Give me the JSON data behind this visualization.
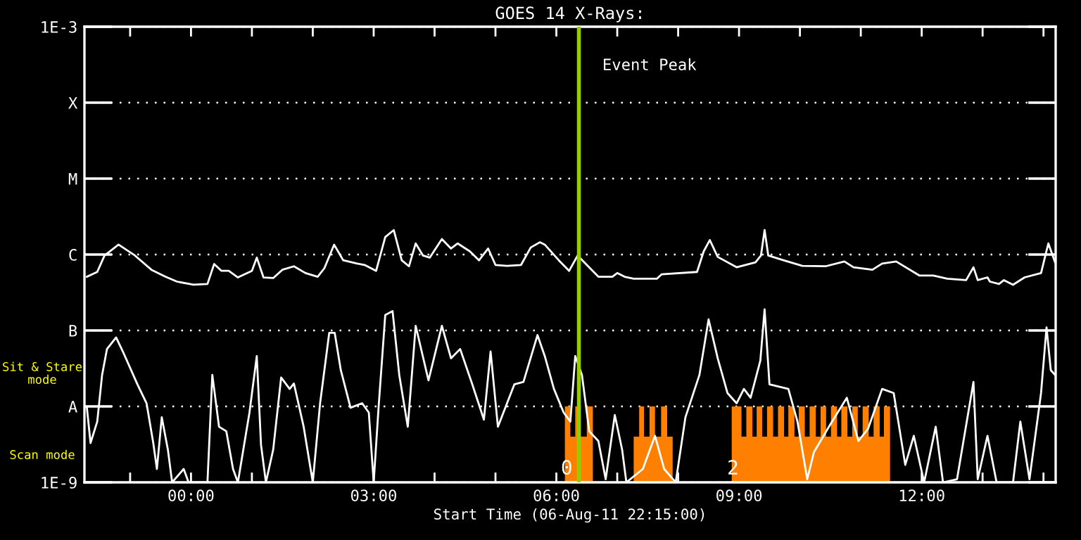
{
  "chart_data": {
    "type": "line",
    "title": "GOES 14 X-Rays:",
    "xlabel": "Start Time (06-Aug-11 22:15:00)",
    "log": "y",
    "grid": "y",
    "line_style": "solid",
    "marker": "none",
    "xlim": [
      -1.75,
      14.2
    ],
    "ylim": [
      1e-09,
      0.001
    ],
    "xticks": [
      {
        "value": -1,
        "label": null
      },
      {
        "value": 0,
        "label": "00:00"
      },
      {
        "value": 1,
        "label": null
      },
      {
        "value": 2,
        "label": null
      },
      {
        "value": 3,
        "label": "03:00"
      },
      {
        "value": 4,
        "label": null
      },
      {
        "value": 5,
        "label": null
      },
      {
        "value": 6,
        "label": "06:00"
      },
      {
        "value": 7,
        "label": null
      },
      {
        "value": 8,
        "label": null
      },
      {
        "value": 9,
        "label": "09:00"
      },
      {
        "value": 10,
        "label": null
      },
      {
        "value": 11,
        "label": null
      },
      {
        "value": 12,
        "label": "12:00"
      },
      {
        "value": 13,
        "label": null
      },
      {
        "value": 14,
        "label": null
      }
    ],
    "yticks": [
      {
        "value": 0.001,
        "label": "1E-3"
      },
      {
        "value": 0.0001,
        "label": "X"
      },
      {
        "value": 1e-05,
        "label": "M"
      },
      {
        "value": 1e-06,
        "label": "C"
      },
      {
        "value": 1e-07,
        "label": "B"
      },
      {
        "value": 1e-08,
        "label": "A"
      },
      {
        "value": 1e-09,
        "label": "1E-9"
      }
    ],
    "ref_lines": [
      {
        "axis": "x",
        "value": 6.37,
        "label": "Event Peak",
        "color": "#99cc00"
      }
    ],
    "annotations": [
      "Sit & Stare mode",
      "Scan mode",
      {
        "text": "0",
        "x": 6.17,
        "y": 1.5e-09
      },
      {
        "text": "2",
        "x": 8.9,
        "y": 1.5e-09
      }
    ],
    "series": [
      {
        "color": "#ffffff",
        "x": [
          -1.71,
          -1.54,
          -1.42,
          -1.19,
          -0.92,
          -0.65,
          -0.42,
          -0.23,
          0.04,
          0.27,
          0.38,
          0.5,
          0.62,
          0.77,
          1.0,
          1.08,
          1.19,
          1.35,
          1.5,
          1.69,
          1.88,
          2.08,
          2.19,
          2.35,
          2.5,
          2.73,
          2.85,
          3.04,
          3.19,
          3.33,
          3.46,
          3.58,
          3.69,
          3.81,
          3.92,
          4.12,
          4.27,
          4.38,
          4.58,
          4.73,
          4.88,
          5.0,
          5.19,
          5.42,
          5.58,
          5.73,
          5.81,
          6.04,
          6.21,
          6.35,
          6.5,
          6.69,
          6.92,
          7.0,
          7.12,
          7.27,
          7.65,
          7.73,
          8.31,
          8.42,
          8.52,
          8.65,
          8.96,
          9.27,
          9.36,
          9.42,
          9.48,
          9.73,
          10.04,
          10.42,
          10.73,
          10.88,
          11.19,
          11.35,
          11.58,
          11.96,
          12.19,
          12.42,
          12.73,
          12.85,
          12.92,
          13.08,
          13.12,
          13.27,
          13.35,
          13.5,
          13.69,
          13.96,
          14.04,
          14.08,
          14.19
        ],
        "values": [
          5.1e-07,
          5.9e-07,
          9.7e-07,
          1.35e-06,
          9.7e-07,
          6.3e-07,
          5.1e-07,
          4.4e-07,
          4e-07,
          4.1e-07,
          7.5e-07,
          6.1e-07,
          6.1e-07,
          5e-07,
          6.1e-07,
          9.1e-07,
          5e-07,
          4.9e-07,
          6.3e-07,
          7e-07,
          5.7e-07,
          5.1e-07,
          6.6e-07,
          1.35e-06,
          8.4e-07,
          7.6e-07,
          7.3e-07,
          6.1e-07,
          1.7e-06,
          2.1e-06,
          8.4e-07,
          7e-07,
          1.4e-06,
          9.7e-07,
          9.1e-07,
          1.6e-06,
          1.2e-06,
          1.4e-06,
          1.1e-06,
          8.4e-07,
          1.2e-06,
          7.3e-07,
          7.1e-07,
          7.3e-07,
          1.24e-06,
          1.45e-06,
          1.35e-06,
          8.4e-07,
          6.1e-07,
          9.7e-07,
          7.3e-07,
          5.1e-07,
          5.1e-07,
          5.7e-07,
          5.1e-07,
          4.8e-07,
          4.8e-07,
          5.5e-07,
          5.9e-07,
          1.1e-06,
          1.55e-06,
          9.3e-07,
          6.8e-07,
          7.9e-07,
          9.7e-07,
          2.1e-06,
          9.7e-07,
          8.4e-07,
          7.1e-07,
          7e-07,
          8.1e-07,
          6.8e-07,
          6.3e-07,
          7.6e-07,
          8.1e-07,
          5.3e-07,
          5.3e-07,
          4.8e-07,
          4.6e-07,
          6.8e-07,
          4.6e-07,
          5e-07,
          4.4e-07,
          4.1e-07,
          4.6e-07,
          4e-07,
          5e-07,
          5.7e-07,
          1.04e-06,
          1.4e-06,
          7.9e-07
        ]
      },
      {
        "color": "#ffffff",
        "x": [
          -1.71,
          -1.65,
          -1.54,
          -1.46,
          -1.38,
          -1.23,
          -1.12,
          -0.88,
          -0.73,
          -0.62,
          -0.56,
          -0.48,
          -0.38,
          -0.31,
          -0.12,
          -0.04,
          0.27,
          0.35,
          0.46,
          0.58,
          0.69,
          0.77,
          0.96,
          1.08,
          1.15,
          1.23,
          1.35,
          1.48,
          1.62,
          1.69,
          1.85,
          2.0,
          2.12,
          2.27,
          2.36,
          2.46,
          2.62,
          2.81,
          2.92,
          3.0,
          3.08,
          3.19,
          3.31,
          3.42,
          3.56,
          3.69,
          3.9,
          4.12,
          4.27,
          4.42,
          4.62,
          4.81,
          4.92,
          5.04,
          5.31,
          5.46,
          5.69,
          5.81,
          5.96,
          6.12,
          6.23,
          6.31,
          6.42,
          6.54,
          6.69,
          6.81,
          6.96,
          7.08,
          7.15,
          7.42,
          7.62,
          7.77,
          7.96,
          8.12,
          8.35,
          8.5,
          8.65,
          8.81,
          8.96,
          9.08,
          9.19,
          9.35,
          9.42,
          9.5,
          9.81,
          9.96,
          10.12,
          10.23,
          10.5,
          10.77,
          10.96,
          11.12,
          11.35,
          11.54,
          11.73,
          11.87,
          12.04,
          12.23,
          12.35,
          12.58,
          12.85,
          12.92,
          13.08,
          13.23,
          13.5,
          13.62,
          13.77,
          13.96,
          14.05,
          14.12,
          14.19
        ],
        "values": [
          9.6e-09,
          3.3e-09,
          6.3e-09,
          2.6e-08,
          5.7e-08,
          8.1e-08,
          5.3e-08,
          1.95e-08,
          1.1e-08,
          3.3e-09,
          1.5e-09,
          7.2e-09,
          2.7e-09,
          1e-09,
          1.5e-09,
          1e-09,
          1e-09,
          2.6e-08,
          5.4e-09,
          4.7e-09,
          1.5e-09,
          1e-09,
          8.3e-09,
          4.6e-08,
          3.1e-09,
          1e-09,
          2.7e-09,
          2.4e-08,
          1.7e-08,
          2e-08,
          5.4e-09,
          1e-09,
          1.1e-08,
          9.3e-08,
          9.3e-08,
          3e-08,
          9.6e-09,
          1.1e-08,
          8.3e-09,
          1e-09,
          9.6e-09,
          1.6e-07,
          1.8e-07,
          2.6e-08,
          5.4e-09,
          1.15e-07,
          2.2e-08,
          1.15e-07,
          4.3e-08,
          5.7e-08,
          1.95e-08,
          6.7e-09,
          5.3e-08,
          5.4e-09,
          1.95e-08,
          2.1e-08,
          8.7e-08,
          4.6e-08,
          1.7e-08,
          8.3e-09,
          6.3e-09,
          4.6e-08,
          2.6e-08,
          4.7e-09,
          3.5e-09,
          1.1e-09,
          7.7e-09,
          2.7e-09,
          1e-09,
          1.5e-09,
          4.1e-09,
          1.5e-09,
          1e-09,
          7.2e-09,
          2.6e-08,
          1.4e-07,
          4.3e-08,
          1.5e-08,
          1.1e-08,
          1.7e-08,
          1.3e-08,
          4e-08,
          1.9e-07,
          1.95e-08,
          1.7e-08,
          6.3e-09,
          1.1e-09,
          2.5e-09,
          5.8e-09,
          1.3e-08,
          3.5e-09,
          5.1e-09,
          1.7e-08,
          1.5e-08,
          1.7e-09,
          4.1e-09,
          1e-09,
          5.4e-09,
          1e-09,
          1.1e-09,
          2.1e-08,
          1.1e-09,
          4.1e-09,
          1e-09,
          1e-09,
          6.3e-09,
          1.1e-09,
          1.5e-08,
          1.1e-07,
          3e-08,
          2.6e-08
        ]
      },
      {
        "type": "area",
        "color": "#ff8000",
        "x": [
          6.14,
          6.23,
          6.23,
          6.31,
          6.31,
          6.4,
          6.4,
          6.5,
          6.5,
          6.6,
          6.9,
          7.27,
          7.36,
          7.36,
          7.44,
          7.44,
          7.53,
          7.53,
          7.62,
          7.62,
          7.72,
          7.72,
          7.82,
          7.82,
          7.91,
          8.4,
          8.88,
          9.04,
          9.04,
          9.12,
          9.12,
          9.22,
          9.22,
          9.29,
          9.29,
          9.38,
          9.38,
          9.46,
          9.46,
          9.56,
          9.56,
          9.64,
          9.64,
          9.74,
          9.74,
          9.81,
          9.81,
          9.91,
          9.91,
          9.98,
          9.98,
          10.08,
          10.08,
          10.16,
          10.16,
          10.26,
          10.26,
          10.34,
          10.34,
          10.43,
          10.43,
          10.51,
          10.51,
          10.61,
          10.61,
          10.68,
          10.68,
          10.78,
          10.78,
          10.86,
          10.86,
          10.95,
          10.95,
          11.03,
          11.03,
          11.13,
          11.13,
          11.21,
          11.21,
          11.31,
          11.31,
          11.38,
          11.38,
          11.48
        ],
        "values": [
          1e-08,
          1e-08,
          4e-09,
          4e-09,
          1e-08,
          1e-08,
          4e-09,
          4e-09,
          1e-08,
          1e-08,
          null,
          4e-09,
          4e-09,
          1e-08,
          1e-08,
          4e-09,
          4e-09,
          1e-08,
          1e-08,
          4e-09,
          4e-09,
          1e-08,
          1e-08,
          4e-09,
          4e-09,
          null,
          1e-08,
          1e-08,
          4e-09,
          4e-09,
          1e-08,
          1e-08,
          4e-09,
          4e-09,
          1e-08,
          1e-08,
          4e-09,
          4e-09,
          1e-08,
          1e-08,
          4e-09,
          4e-09,
          1e-08,
          1e-08,
          4e-09,
          4e-09,
          1e-08,
          1e-08,
          4e-09,
          4e-09,
          1e-08,
          1e-08,
          4e-09,
          4e-09,
          1e-08,
          1e-08,
          4e-09,
          4e-09,
          1e-08,
          1e-08,
          4e-09,
          4e-09,
          1e-08,
          1e-08,
          4e-09,
          4e-09,
          1e-08,
          1e-08,
          4e-09,
          4e-09,
          1e-08,
          1e-08,
          4e-09,
          4e-09,
          1e-08,
          1e-08,
          4e-09,
          4e-09,
          1e-08,
          1e-08,
          4e-09,
          4e-09,
          1e-08,
          1e-08
        ]
      }
    ]
  }
}
